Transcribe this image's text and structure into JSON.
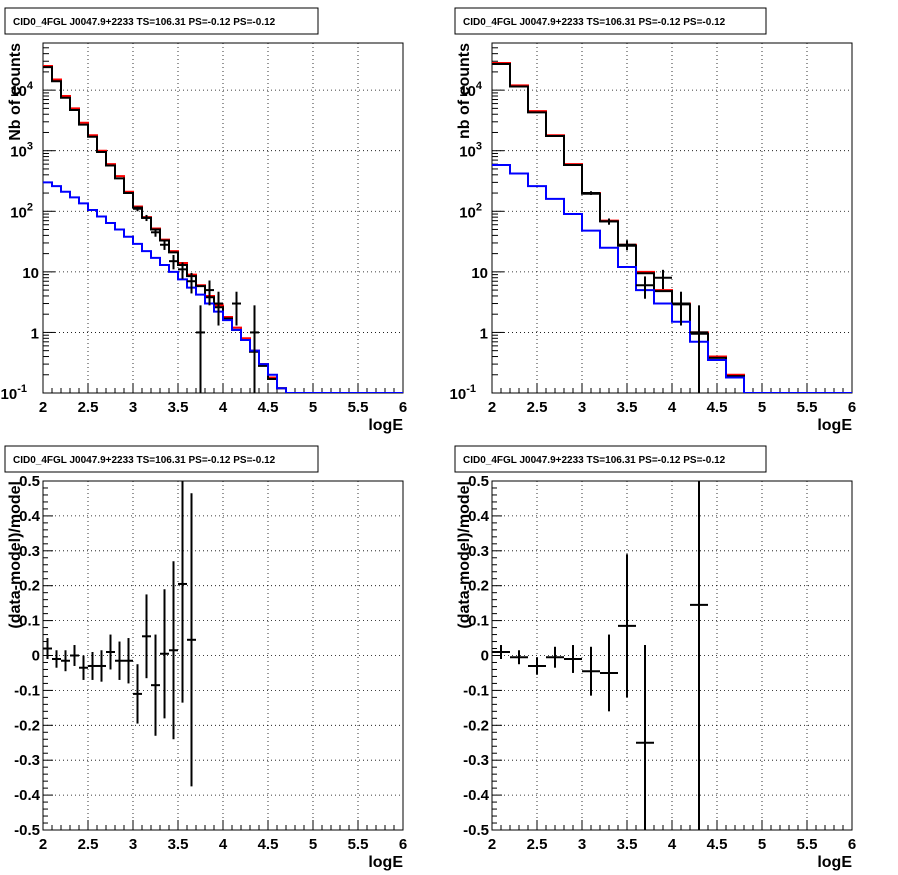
{
  "chart_data": [
    {
      "type": "line",
      "title": "CID0_4FGL J0047.9+2233 TS=106.31 PS=-0.12 PS=-0.12",
      "xlabel": "logE",
      "ylabel": "Nb of counts",
      "xlim": [
        2,
        6
      ],
      "ylim": [
        0.1,
        60000
      ],
      "yscale": "log",
      "grid": true,
      "x_ticks": [
        "2",
        "2.5",
        "3",
        "3.5",
        "4",
        "4.5",
        "5",
        "5.5",
        "6"
      ],
      "y_ticks": [
        "10^-1",
        "1",
        "10",
        "10^2",
        "10^3",
        "10^4"
      ],
      "bin_edges": [
        2.0,
        2.1,
        2.2,
        2.3,
        2.4,
        2.5,
        2.6,
        2.7,
        2.8,
        2.9,
        3.0,
        3.1,
        3.2,
        3.3,
        3.4,
        3.5,
        3.6,
        3.7,
        3.8,
        3.9,
        4.0,
        4.1,
        4.2,
        4.3,
        4.4,
        4.5,
        4.6,
        4.7,
        4.8,
        4.9,
        5.0,
        5.1,
        5.2,
        5.3,
        5.4,
        5.5,
        5.6,
        5.7,
        5.8,
        5.9,
        6.0
      ],
      "series": [
        {
          "color": "#ff0000",
          "style": "step",
          "values": [
            25000,
            15000,
            8000,
            5000,
            2900,
            1800,
            1000,
            600,
            380,
            210,
            120,
            80,
            52,
            34,
            22,
            14,
            9,
            6,
            4,
            2.8,
            1.8,
            1.2,
            0.8,
            0.5,
            0.3,
            0.18,
            0.12,
            0.1,
            0.1,
            0.1,
            0.1,
            0.1,
            0.1,
            0.1,
            0.1,
            0.1,
            0.1,
            0.1,
            0.1,
            0.1
          ]
        },
        {
          "color": "#000000",
          "style": "step",
          "values": [
            24000,
            14000,
            7500,
            4700,
            2700,
            1700,
            950,
            570,
            350,
            200,
            115,
            78,
            50,
            33,
            21,
            13,
            8.5,
            5.8,
            3.8,
            2.6,
            1.7,
            1.1,
            0.75,
            0.48,
            0.28,
            0.17,
            0.12,
            0.1,
            0.1,
            0.1,
            0.1,
            0.1,
            0.1,
            0.1,
            0.1,
            0.1,
            0.1,
            0.1,
            0.1,
            0.1
          ]
        },
        {
          "color": "#0000ff",
          "style": "step",
          "values": [
            300,
            260,
            210,
            170,
            135,
            105,
            82,
            64,
            50,
            38,
            29,
            22,
            17,
            13,
            10,
            7.5,
            5.5,
            4.2,
            3.0,
            2.2,
            1.6,
            1.1,
            0.75,
            0.5,
            0.3,
            0.2,
            0.12,
            0.1,
            0.1,
            0.1,
            0.1,
            0.1,
            0.1,
            0.1,
            0.1,
            0.1,
            0.1,
            0.1,
            0.1,
            0.1
          ]
        }
      ],
      "points": {
        "color": "#000000",
        "x": [
          3.05,
          3.15,
          3.25,
          3.35,
          3.45,
          3.55,
          3.65,
          3.75,
          3.85,
          3.95,
          4.15,
          4.35
        ],
        "y": [
          110,
          78,
          45,
          28,
          15,
          11,
          7,
          1,
          5,
          3,
          3,
          1
        ],
        "yerr_lo": [
          10,
          9,
          7,
          5,
          4,
          3.3,
          2.6,
          1,
          2.2,
          1.7,
          1.7,
          1
        ],
        "yerr_hi": [
          10,
          9,
          7,
          5,
          4,
          3.3,
          2.6,
          1.8,
          2.2,
          1.7,
          1.7,
          1.8
        ],
        "xerr": 0.05
      }
    },
    {
      "type": "line",
      "title": "CID0_4FGL J0047.9+2233 TS=106.31 PS=-0.12 PS=-0.12",
      "xlabel": "logE",
      "ylabel": "nb of counts",
      "xlim": [
        2,
        6
      ],
      "ylim": [
        0.1,
        60000
      ],
      "yscale": "log",
      "grid": true,
      "x_ticks": [
        "2",
        "2.5",
        "3",
        "3.5",
        "4",
        "4.5",
        "5",
        "5.5",
        "6"
      ],
      "y_ticks": [
        "10^-1",
        "1",
        "10",
        "10^2",
        "10^3",
        "10^4"
      ],
      "bin_edges": [
        2.0,
        2.2,
        2.4,
        2.6,
        2.8,
        3.0,
        3.2,
        3.4,
        3.6,
        3.8,
        4.0,
        4.2,
        4.4,
        4.6,
        4.8,
        5.0,
        5.2,
        5.4,
        5.6,
        5.8,
        6.0
      ],
      "series": [
        {
          "color": "#ff0000",
          "style": "step",
          "values": [
            28000,
            12000,
            4500,
            1800,
            600,
            200,
            70,
            28,
            10,
            5,
            3,
            1,
            0.4,
            0.2,
            0.1,
            0.1,
            0.1,
            0.1,
            0.1,
            0.1
          ]
        },
        {
          "color": "#000000",
          "style": "step",
          "values": [
            27000,
            11500,
            4300,
            1750,
            580,
            195,
            68,
            27,
            9.5,
            4.8,
            2.9,
            0.95,
            0.38,
            0.19,
            0.1,
            0.1,
            0.1,
            0.1,
            0.1,
            0.1
          ]
        },
        {
          "color": "#0000ff",
          "style": "step",
          "values": [
            580,
            420,
            260,
            160,
            90,
            48,
            25,
            12,
            5,
            3,
            1.5,
            0.7,
            0.35,
            0.18,
            0.1,
            0.1,
            0.1,
            0.1,
            0.1,
            0.1
          ]
        }
      ],
      "points": {
        "color": "#000000",
        "x": [
          3.1,
          3.3,
          3.5,
          3.7,
          3.9,
          4.1,
          4.3
        ],
        "y": [
          200,
          68,
          28,
          6,
          8,
          3,
          1
        ],
        "yerr_lo": [
          14,
          8,
          5.3,
          2.4,
          2.8,
          1.7,
          1
        ],
        "yerr_hi": [
          14,
          8,
          5.3,
          2.4,
          2.8,
          1.7,
          1.8
        ],
        "xerr": 0.1
      }
    },
    {
      "type": "scatter",
      "title": "CID0_4FGL J0047.9+2233 TS=106.31 PS=-0.12 PS=-0.12",
      "xlabel": "logE",
      "ylabel": "(data-model)/model",
      "xlim": [
        2,
        6
      ],
      "ylim": [
        -0.5,
        0.5
      ],
      "grid": true,
      "x_ticks": [
        "2",
        "2.5",
        "3",
        "3.5",
        "4",
        "4.5",
        "5",
        "5.5",
        "6"
      ],
      "y_ticks": [
        "-0.5",
        "-0.4",
        "-0.3",
        "-0.2",
        "-0.1",
        "0",
        "0.1",
        "0.2",
        "0.3",
        "0.4",
        "0.5"
      ],
      "points": {
        "color": "#000000",
        "x": [
          2.05,
          2.15,
          2.25,
          2.35,
          2.45,
          2.55,
          2.65,
          2.75,
          2.85,
          2.95,
          3.05,
          3.15,
          3.25,
          3.35,
          3.45,
          3.55,
          3.65
        ],
        "y": [
          0.02,
          -0.01,
          -0.015,
          0.0,
          -0.035,
          -0.03,
          -0.03,
          0.01,
          -0.015,
          -0.015,
          -0.11,
          0.055,
          -0.085,
          0.005,
          0.015,
          0.205,
          0.045
        ],
        "yerr": [
          0.03,
          0.025,
          0.03,
          0.03,
          0.035,
          0.04,
          0.045,
          0.05,
          0.055,
          0.065,
          0.085,
          0.12,
          0.145,
          0.185,
          0.255,
          0.34,
          0.42
        ],
        "xerr": 0.05
      }
    },
    {
      "type": "scatter",
      "title": "CID0_4FGL J0047.9+2233 TS=106.31 PS=-0.12 PS=-0.12",
      "xlabel": "logE",
      "ylabel": "(data-model)/model",
      "xlim": [
        2,
        6
      ],
      "ylim": [
        -0.5,
        0.5
      ],
      "grid": true,
      "x_ticks": [
        "2",
        "2.5",
        "3",
        "3.5",
        "4",
        "4.5",
        "5",
        "5.5",
        "6"
      ],
      "y_ticks": [
        "-0.5",
        "-0.4",
        "-0.3",
        "-0.2",
        "-0.1",
        "0",
        "0.1",
        "0.2",
        "0.3",
        "0.4",
        "0.5"
      ],
      "points": {
        "color": "#000000",
        "x": [
          2.1,
          2.3,
          2.5,
          2.7,
          2.9,
          3.1,
          3.3,
          3.5,
          3.7,
          4.3
        ],
        "y": [
          0.01,
          -0.005,
          -0.03,
          -0.005,
          -0.01,
          -0.045,
          -0.05,
          0.085,
          -0.25,
          0.145
        ],
        "yerr": [
          0.02,
          0.02,
          0.025,
          0.03,
          0.04,
          0.07,
          0.11,
          0.205,
          0.28,
          0.65
        ],
        "xerr": 0.1
      }
    }
  ]
}
